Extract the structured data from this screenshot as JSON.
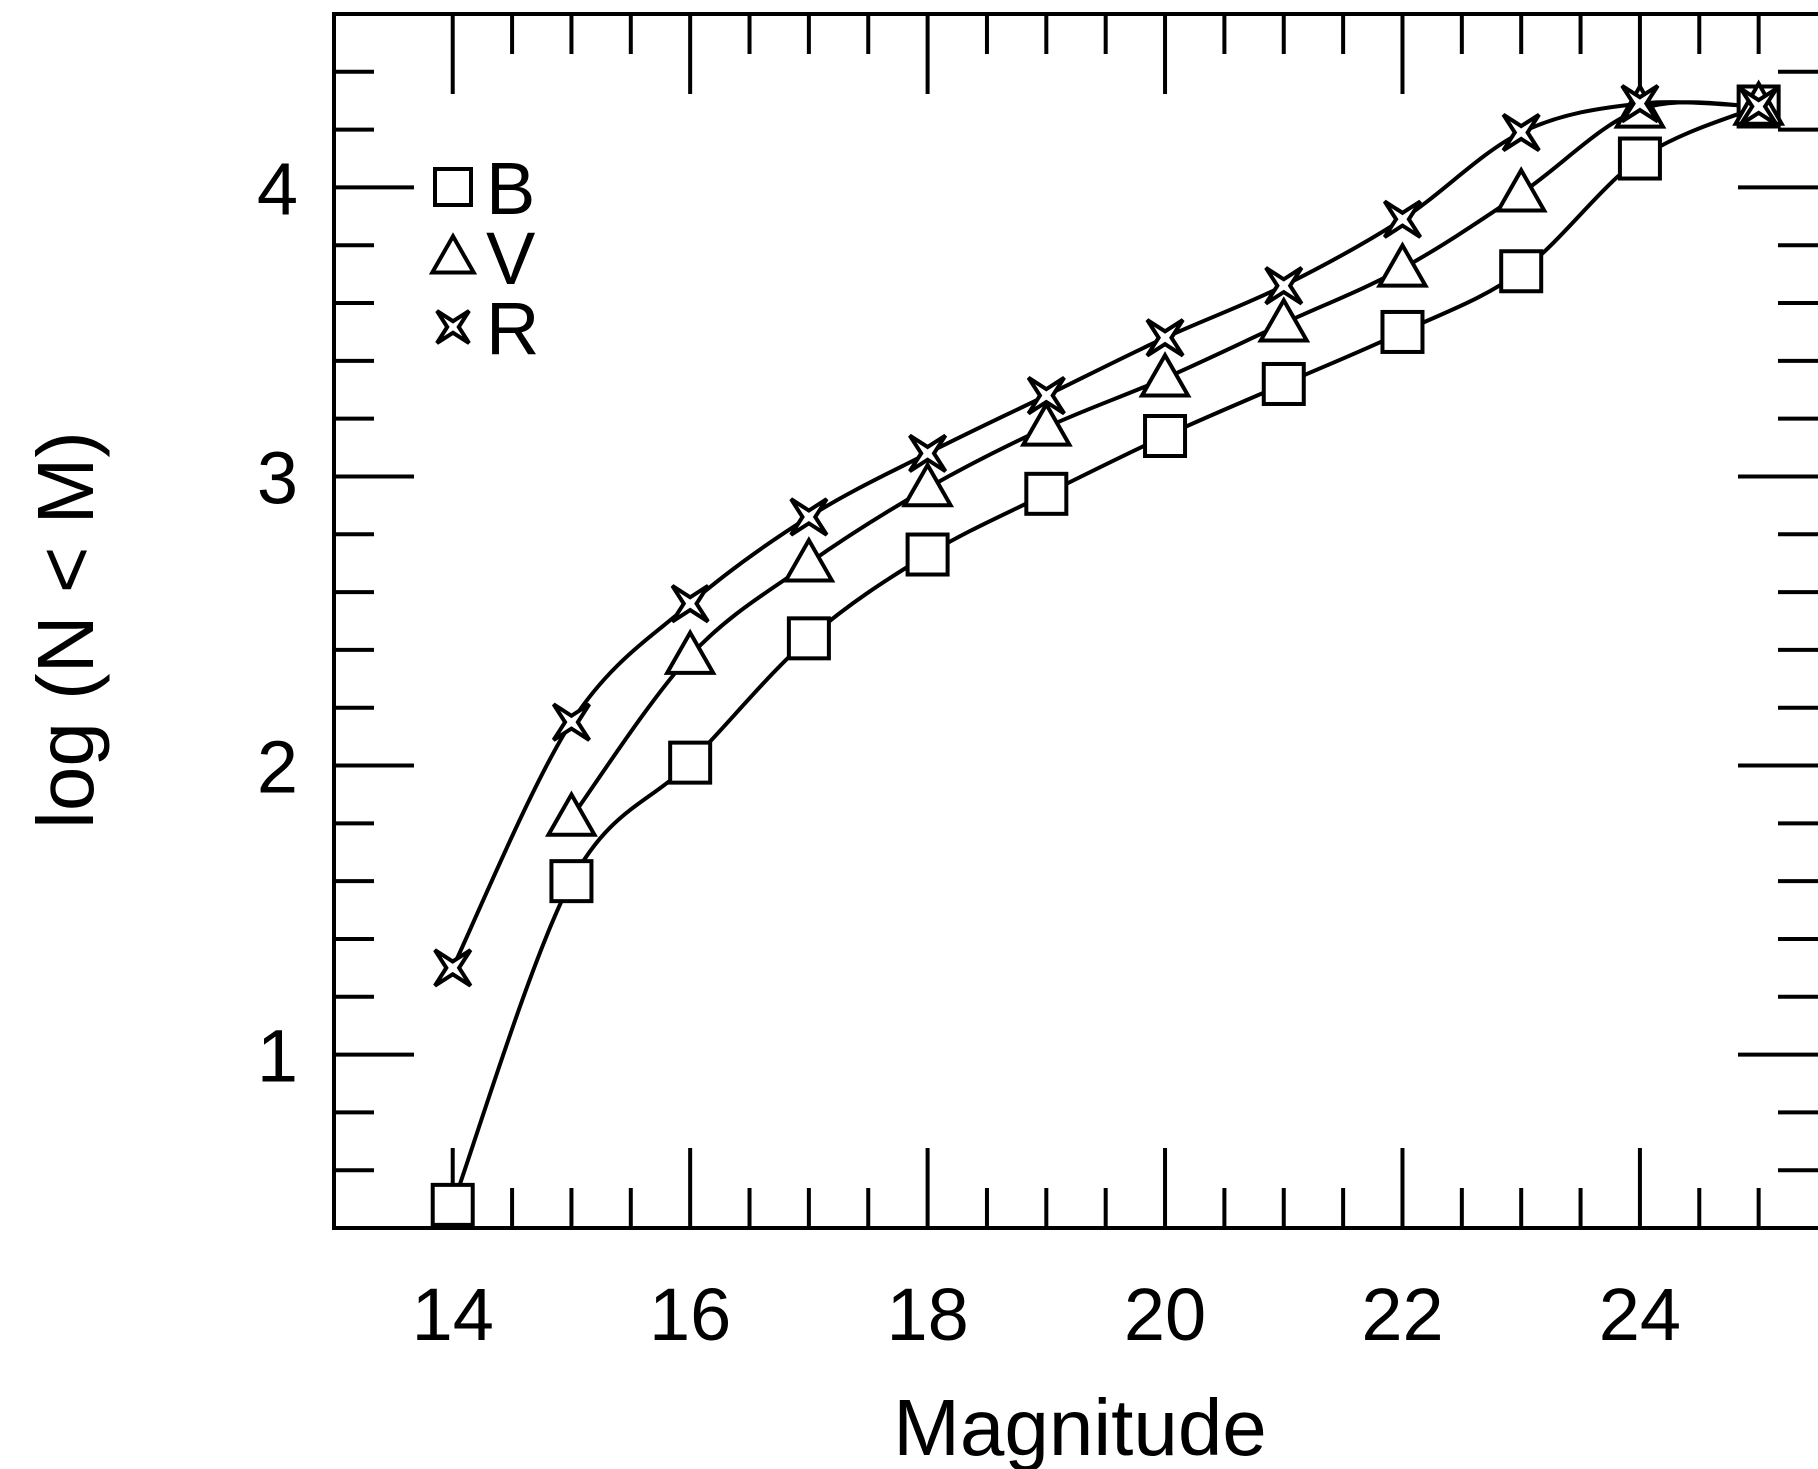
{
  "chart_data": {
    "type": "line",
    "title": "",
    "xlabel": "Magnitude",
    "ylabel": "log (N < M)",
    "xlim": [
      13,
      25.5
    ],
    "ylim": [
      0.4,
      4.6
    ],
    "grid": false,
    "legend_position": "top-left",
    "x_ticks": [
      14,
      16,
      18,
      20,
      22,
      24
    ],
    "y_ticks": [
      1,
      2,
      3,
      4
    ],
    "x": [
      14,
      15,
      16,
      17,
      18,
      19,
      20,
      21,
      22,
      23,
      24,
      25
    ],
    "series": [
      {
        "name": "B",
        "marker": "square",
        "values": [
          0.48,
          1.6,
          2.01,
          2.44,
          2.73,
          2.94,
          3.14,
          3.32,
          3.5,
          3.71,
          4.1,
          4.28
        ]
      },
      {
        "name": "V",
        "marker": "triangle",
        "values": [
          null,
          1.82,
          2.38,
          2.7,
          2.96,
          3.17,
          3.34,
          3.53,
          3.72,
          3.98,
          4.27,
          4.28
        ]
      },
      {
        "name": "R",
        "marker": "star",
        "values": [
          1.3,
          2.15,
          2.56,
          2.86,
          3.08,
          3.28,
          3.48,
          3.66,
          3.89,
          4.19,
          4.29,
          4.28
        ]
      }
    ],
    "colors": {
      "ink": "#000000",
      "background": "#ffffff"
    }
  }
}
